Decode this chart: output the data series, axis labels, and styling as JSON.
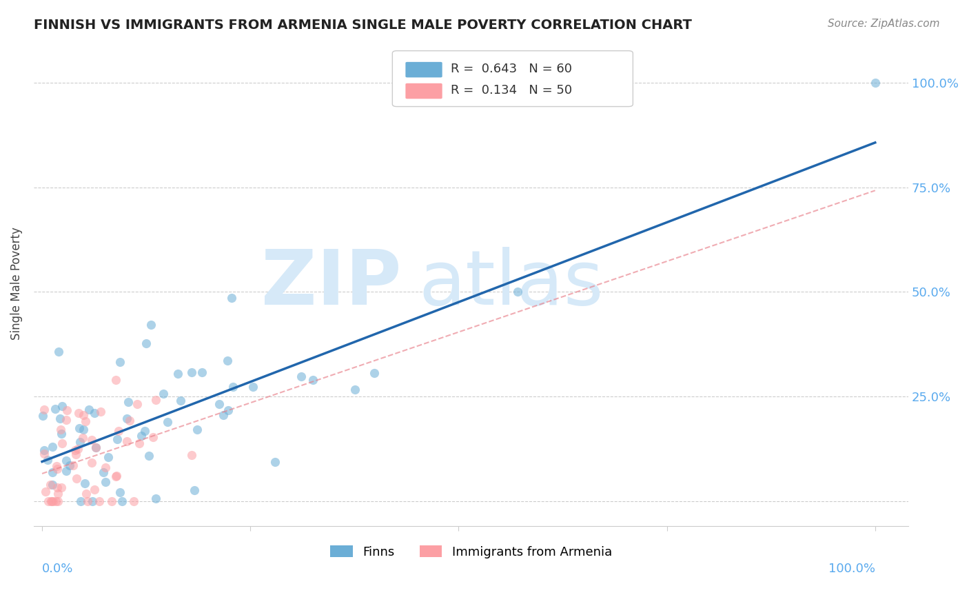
{
  "title": "FINNISH VS IMMIGRANTS FROM ARMENIA SINGLE MALE POVERTY CORRELATION CHART",
  "source": "Source: ZipAtlas.com",
  "ylabel": "Single Male Poverty",
  "ytick_vals": [
    0,
    0.25,
    0.5,
    0.75,
    1.0
  ],
  "ytick_labels": [
    "",
    "25.0%",
    "50.0%",
    "75.0%",
    "100.0%"
  ],
  "xtick_left": "0.0%",
  "xtick_right": "100.0%",
  "legend1_R": "0.643",
  "legend1_N": "60",
  "legend2_R": "0.134",
  "legend2_N": "50",
  "finns_color": "#6baed6",
  "armenia_color": "#fc9fa4",
  "finns_line_color": "#2166ac",
  "armenia_line_color": "#e8808a",
  "watermark_color": "#d6e9f8",
  "background_color": "#ffffff",
  "tick_label_color": "#5aaaee",
  "title_color": "#222222",
  "source_color": "#888888",
  "ylabel_color": "#444444"
}
